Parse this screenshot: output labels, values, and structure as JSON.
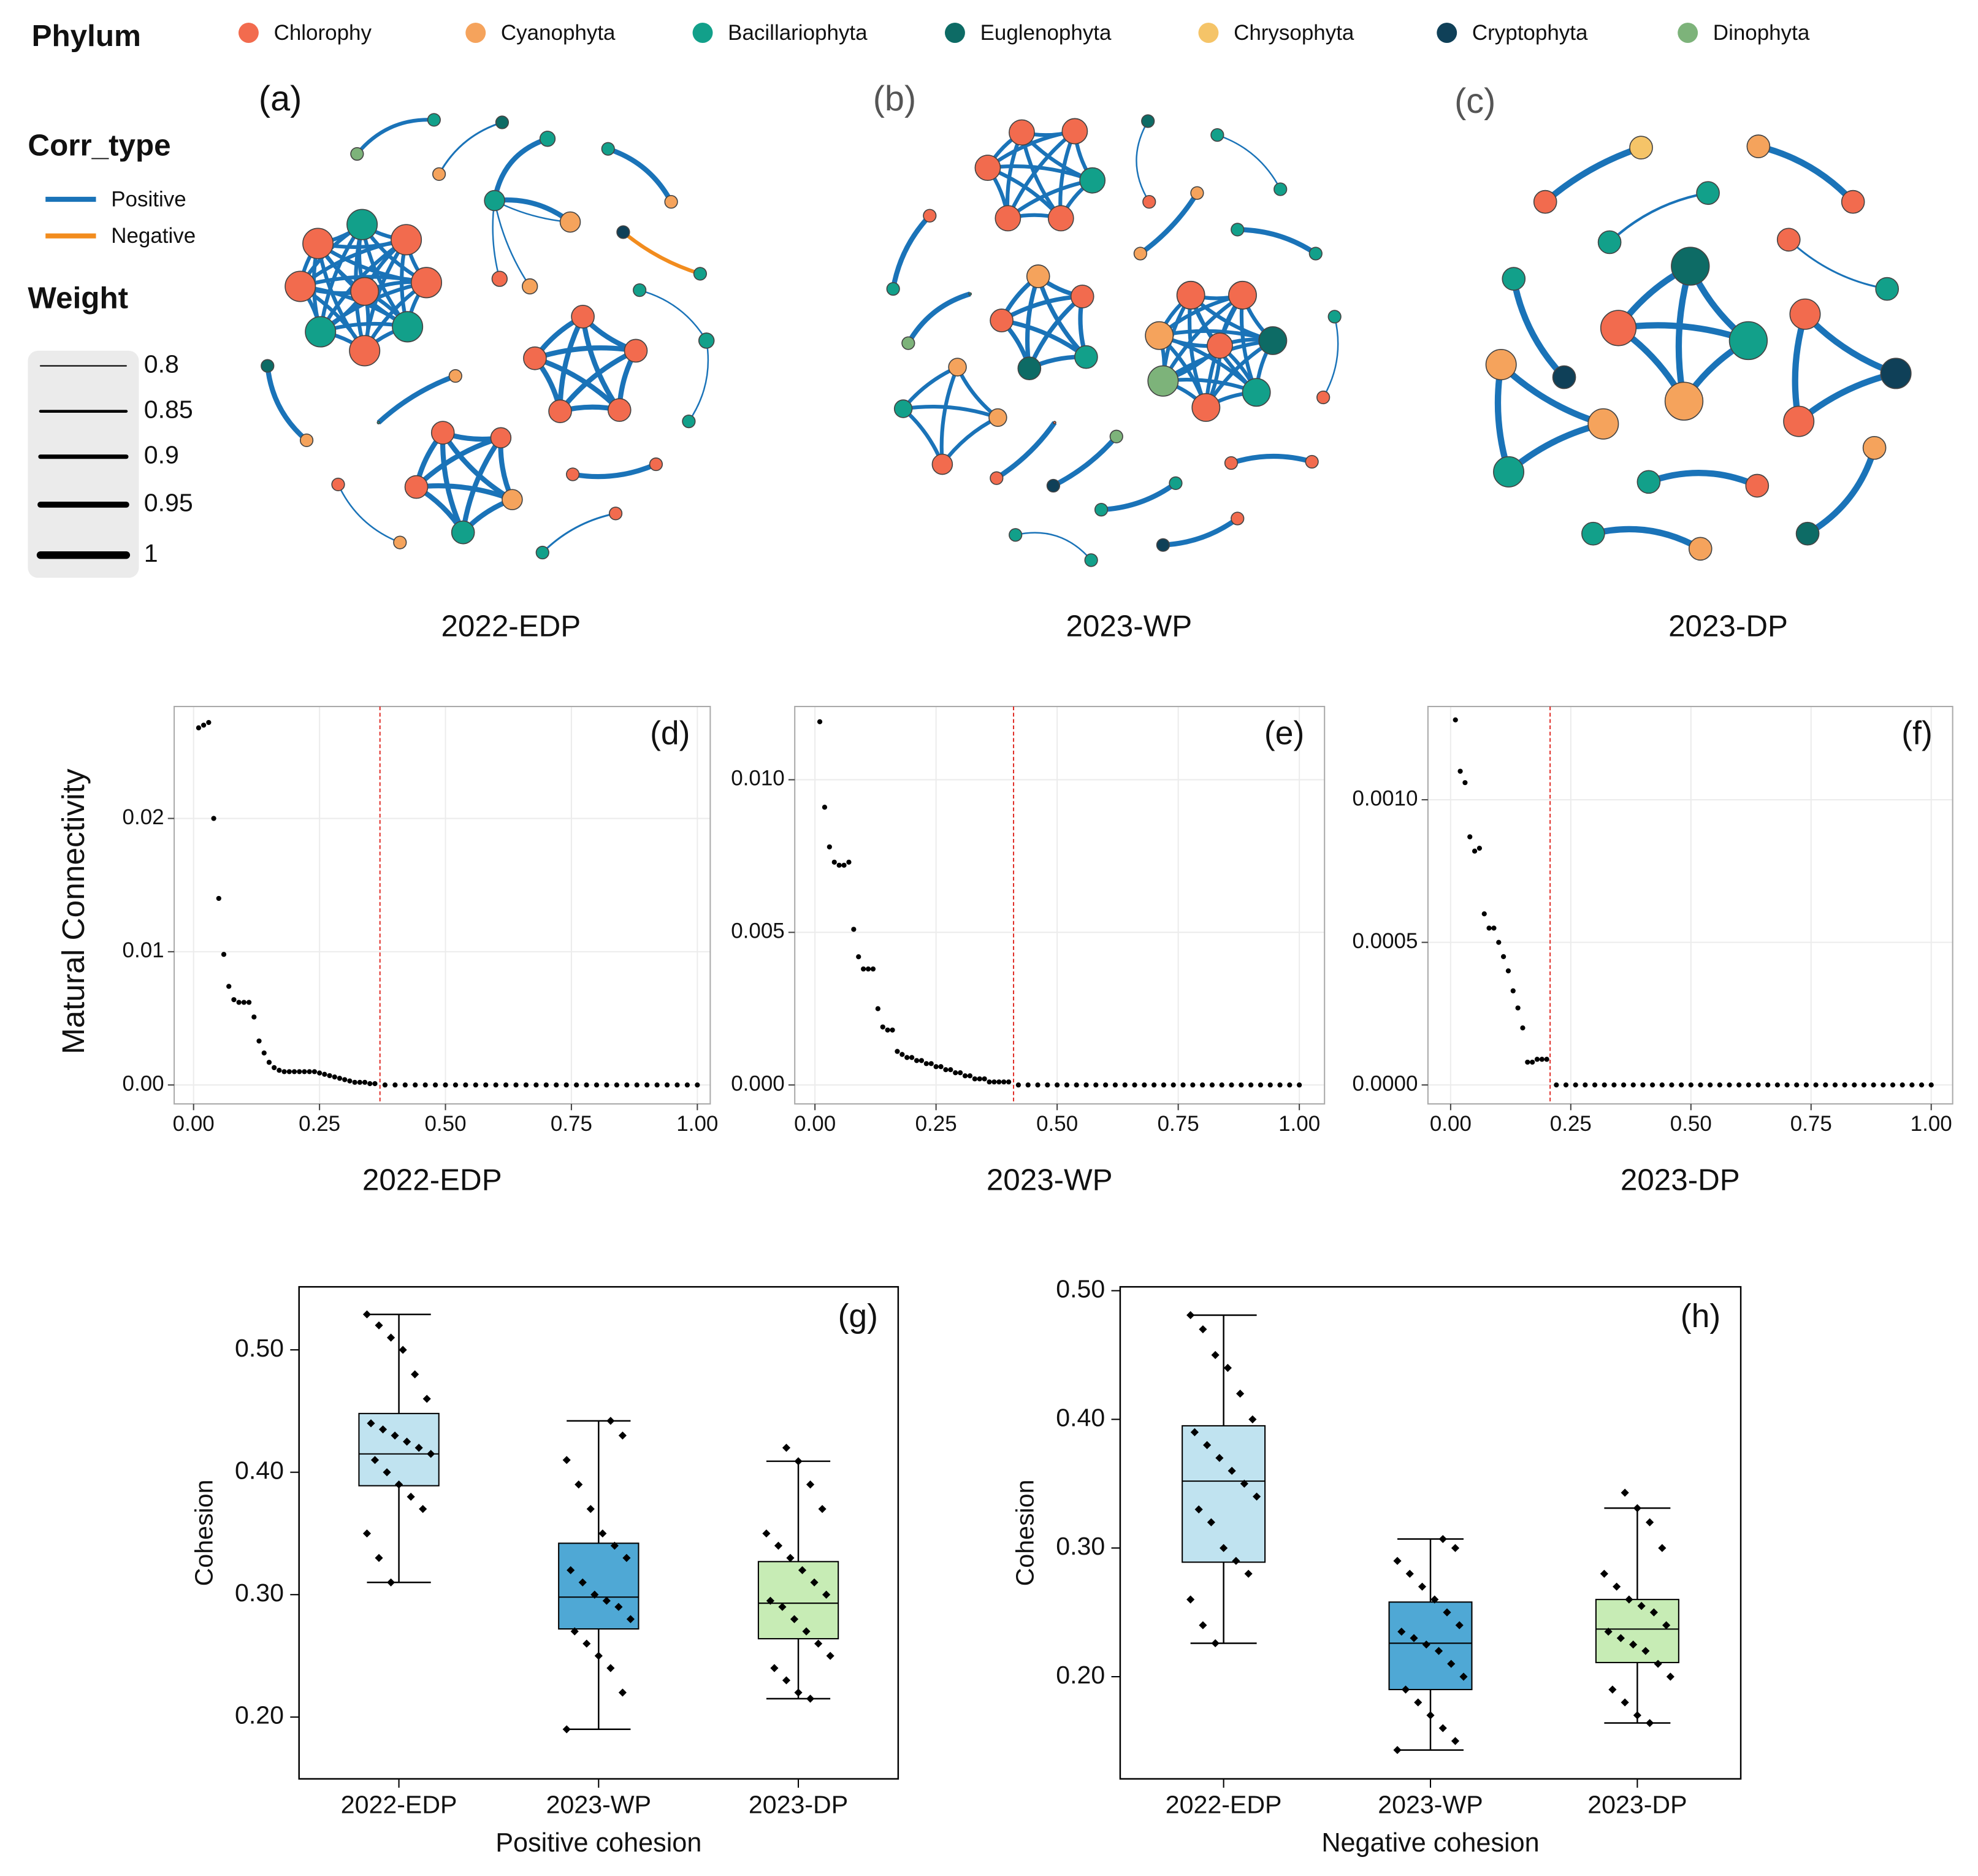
{
  "legend": {
    "phylum": {
      "title": "Phylum",
      "names": [
        "Chlorophy",
        "Cyanophyta",
        "Bacillariophyta",
        "Euglenophyta",
        "Chrysophyta",
        "Cryptophyta",
        "Dinophyta"
      ],
      "colors": [
        "#f26b4e",
        "#f5a35c",
        "#12a08a",
        "#0d6b65",
        "#f5c468",
        "#0f4058",
        "#7db37a"
      ]
    },
    "corr_type": {
      "title": "Corr_type",
      "names": [
        "Positive",
        "Negative"
      ],
      "colors": [
        "#1a73b8",
        "#f28c1e"
      ]
    },
    "weight": {
      "title": "Weight",
      "values": [
        0.8,
        0.85,
        0.9,
        0.95,
        1
      ]
    }
  },
  "networks": [
    {
      "tag": "(a)",
      "label": "2022-EDP"
    },
    {
      "tag": "(b)",
      "label": "2023-WP"
    },
    {
      "tag": "(c)",
      "label": "2023-DP"
    }
  ],
  "chart_data": [
    {
      "type": "scatter",
      "tag": "(d)",
      "xlabel": "2022-EDP",
      "ylabel": "Matural Connectivity",
      "color": "#000000",
      "grid": true,
      "vline": 0.37,
      "vline_color": "#e0302a",
      "xlim": [
        -0.0385,
        1.0256
      ],
      "ylim": [
        -0.00142,
        0.0284
      ],
      "xticks": [
        {
          "value": 0,
          "label": "0.00"
        },
        {
          "value": 0.25,
          "label": "0.25"
        },
        {
          "value": 0.5,
          "label": "0.50"
        },
        {
          "value": 0.75,
          "label": "0.75"
        },
        {
          "value": 1,
          "label": "1.00"
        }
      ],
      "yticks": [
        {
          "value": 0,
          "label": "0.00"
        },
        {
          "value": 0.01,
          "label": "0.01"
        },
        {
          "value": 0.02,
          "label": "0.02"
        }
      ],
      "x": [
        0.01,
        0.02,
        0.03,
        0.04,
        0.05,
        0.06,
        0.07,
        0.08,
        0.09,
        0.1,
        0.11,
        0.12,
        0.13,
        0.14,
        0.15,
        0.16,
        0.17,
        0.18,
        0.19,
        0.2,
        0.21,
        0.22,
        0.23,
        0.24,
        0.25,
        0.26,
        0.27,
        0.28,
        0.29,
        0.3,
        0.31,
        0.32,
        0.33,
        0.34,
        0.35,
        0.36,
        0.38,
        0.4,
        0.42,
        0.44,
        0.46,
        0.48,
        0.5,
        0.52,
        0.54,
        0.56,
        0.58,
        0.6,
        0.62,
        0.64,
        0.66,
        0.68,
        0.7,
        0.72,
        0.74,
        0.76,
        0.78,
        0.8,
        0.82,
        0.84,
        0.86,
        0.88,
        0.9,
        0.92,
        0.94,
        0.96,
        0.98,
        1
      ],
      "y": [
        0.0268,
        0.027,
        0.0272,
        0.02,
        0.014,
        0.0098,
        0.0074,
        0.0064,
        0.0062,
        0.0062,
        0.0062,
        0.0051,
        0.0033,
        0.0024,
        0.0017,
        0.0013,
        0.0011,
        0.001,
        0.001,
        0.001,
        0.001,
        0.001,
        0.001,
        0.001,
        0.0009,
        0.0008,
        0.0007,
        0.0006,
        0.0005,
        0.0004,
        0.0003,
        0.0002,
        0.0002,
        0.0002,
        0.0001,
        0.0001,
        0,
        0,
        0,
        0,
        0,
        0,
        0,
        0,
        0,
        0,
        0,
        0,
        0,
        0,
        0,
        0,
        0,
        0,
        0,
        0,
        0,
        0,
        0,
        0,
        0,
        0,
        0,
        0,
        0,
        0,
        0,
        0
      ]
    },
    {
      "type": "scatter",
      "tag": "(e)",
      "xlabel": "2023-WP",
      "color": "#000000",
      "grid": true,
      "vline": 0.41,
      "vline_color": "#e0302a",
      "xlim": [
        -0.0417,
        1.052
      ],
      "ylim": [
        -0.00062,
        0.0124
      ],
      "xticks": [
        {
          "value": 0,
          "label": "0.00"
        },
        {
          "value": 0.25,
          "label": "0.25"
        },
        {
          "value": 0.5,
          "label": "0.50"
        },
        {
          "value": 0.75,
          "label": "0.75"
        },
        {
          "value": 1,
          "label": "1.00"
        }
      ],
      "yticks": [
        {
          "value": 0,
          "label": "0.000"
        },
        {
          "value": 0.005,
          "label": "0.005"
        },
        {
          "value": 0.01,
          "label": "0.010"
        }
      ],
      "x": [
        0.01,
        0.02,
        0.03,
        0.04,
        0.05,
        0.06,
        0.07,
        0.08,
        0.09,
        0.1,
        0.11,
        0.12,
        0.13,
        0.14,
        0.15,
        0.16,
        0.17,
        0.18,
        0.19,
        0.2,
        0.21,
        0.22,
        0.23,
        0.24,
        0.25,
        0.26,
        0.27,
        0.28,
        0.29,
        0.3,
        0.31,
        0.32,
        0.33,
        0.34,
        0.35,
        0.36,
        0.37,
        0.38,
        0.39,
        0.4,
        0.42,
        0.44,
        0.46,
        0.48,
        0.5,
        0.52,
        0.54,
        0.56,
        0.58,
        0.6,
        0.62,
        0.64,
        0.66,
        0.68,
        0.7,
        0.72,
        0.74,
        0.76,
        0.78,
        0.8,
        0.82,
        0.84,
        0.86,
        0.88,
        0.9,
        0.92,
        0.94,
        0.96,
        0.98,
        1
      ],
      "y": [
        0.0119,
        0.0091,
        0.0078,
        0.0073,
        0.0072,
        0.0072,
        0.0073,
        0.0051,
        0.0042,
        0.0038,
        0.0038,
        0.0038,
        0.0025,
        0.0019,
        0.0018,
        0.0018,
        0.0011,
        0.001,
        0.0009,
        0.0009,
        0.0008,
        0.0008,
        0.0007,
        0.0007,
        0.0006,
        0.0006,
        0.0005,
        0.0005,
        0.0004,
        0.0004,
        0.0003,
        0.0003,
        0.0002,
        0.0002,
        0.0002,
        0.0001,
        0.0001,
        0.0001,
        0.0001,
        0.0001,
        0,
        0,
        0,
        0,
        0,
        0,
        0,
        0,
        0,
        0,
        0,
        0,
        0,
        0,
        0,
        0,
        0,
        0,
        0,
        0,
        0,
        0,
        0,
        0,
        0,
        0,
        0,
        0,
        0,
        0
      ]
    },
    {
      "type": "scatter",
      "tag": "(f)",
      "xlabel": "2023-DP",
      "color": "#000000",
      "grid": true,
      "vline": 0.207,
      "vline_color": "#e0302a",
      "xlim": [
        -0.0472,
        1.0446
      ],
      "ylim": [
        -6.64e-05,
        0.001327
      ],
      "xticks": [
        {
          "value": 0,
          "label": "0.00"
        },
        {
          "value": 0.25,
          "label": "0.25"
        },
        {
          "value": 0.5,
          "label": "0.50"
        },
        {
          "value": 0.75,
          "label": "0.75"
        },
        {
          "value": 1,
          "label": "1.00"
        }
      ],
      "yticks": [
        {
          "value": 0,
          "label": "0.0000"
        },
        {
          "value": 0.0005,
          "label": "0.0005"
        },
        {
          "value": 0.001,
          "label": "0.0010"
        }
      ],
      "x": [
        0.01,
        0.02,
        0.03,
        0.04,
        0.05,
        0.06,
        0.07,
        0.08,
        0.09,
        0.1,
        0.11,
        0.12,
        0.13,
        0.14,
        0.15,
        0.16,
        0.17,
        0.18,
        0.19,
        0.2,
        0.22,
        0.24,
        0.26,
        0.28,
        0.3,
        0.32,
        0.34,
        0.36,
        0.38,
        0.4,
        0.42,
        0.44,
        0.46,
        0.48,
        0.5,
        0.52,
        0.54,
        0.56,
        0.58,
        0.6,
        0.62,
        0.64,
        0.66,
        0.68,
        0.7,
        0.72,
        0.74,
        0.76,
        0.78,
        0.8,
        0.82,
        0.84,
        0.86,
        0.88,
        0.9,
        0.92,
        0.94,
        0.96,
        0.98,
        1
      ],
      "y": [
        0.00128,
        0.0011,
        0.00106,
        0.00087,
        0.00082,
        0.00083,
        0.0006,
        0.00055,
        0.00055,
        0.0005,
        0.00045,
        0.0004,
        0.00033,
        0.00027,
        0.0002,
        8e-05,
        8e-05,
        9e-05,
        9e-05,
        9e-05,
        0,
        0,
        0,
        0,
        0,
        0,
        0,
        0,
        0,
        0,
        0,
        0,
        0,
        0,
        0,
        0,
        0,
        0,
        0,
        0,
        0,
        0,
        0,
        0,
        0,
        0,
        0,
        0,
        0,
        0,
        0,
        0,
        0,
        0,
        0,
        0,
        0,
        0,
        0,
        0
      ]
    },
    {
      "type": "box",
      "tag": "(g)",
      "xlabel": "Positive cohesion",
      "ylabel": "Cohesion",
      "ylim": [
        0.1495,
        0.5515
      ],
      "yticks": [
        {
          "value": 0.2,
          "label": "0.20"
        },
        {
          "value": 0.3,
          "label": "0.30"
        },
        {
          "value": 0.4,
          "label": "0.40"
        },
        {
          "value": 0.5,
          "label": "0.50"
        }
      ],
      "categories": [
        "2022-EDP",
        "2023-WP",
        "2023-DP"
      ],
      "boxes": [
        {
          "min": 0.31,
          "q1": 0.389,
          "median": 0.415,
          "q3": 0.448,
          "max": 0.529,
          "color": "#c0e3f0",
          "points": [
            0.529,
            0.52,
            0.51,
            0.5,
            0.48,
            0.46,
            0.44,
            0.435,
            0.43,
            0.425,
            0.42,
            0.415,
            0.41,
            0.4,
            0.39,
            0.38,
            0.37,
            0.35,
            0.33,
            0.31
          ]
        },
        {
          "min": 0.19,
          "q1": 0.272,
          "median": 0.298,
          "q3": 0.342,
          "max": 0.442,
          "color": "#4fa8d5",
          "points": [
            0.442,
            0.43,
            0.41,
            0.39,
            0.37,
            0.35,
            0.34,
            0.33,
            0.32,
            0.31,
            0.3,
            0.295,
            0.29,
            0.28,
            0.27,
            0.26,
            0.25,
            0.24,
            0.22,
            0.19
          ]
        },
        {
          "min": 0.215,
          "q1": 0.264,
          "median": 0.293,
          "q3": 0.327,
          "max": 0.409,
          "color": "#c7ecb5",
          "points": [
            0.42,
            0.409,
            0.39,
            0.37,
            0.35,
            0.34,
            0.33,
            0.32,
            0.31,
            0.3,
            0.295,
            0.29,
            0.28,
            0.27,
            0.26,
            0.25,
            0.24,
            0.23,
            0.22,
            0.215
          ]
        }
      ]
    },
    {
      "type": "box",
      "tag": "(h)",
      "xlabel": "Negative cohesion",
      "ylabel": "Cohesion",
      "ylim": [
        0.1206,
        0.503
      ],
      "yticks": [
        {
          "value": 0.2,
          "label": "0.20"
        },
        {
          "value": 0.3,
          "label": "0.30"
        },
        {
          "value": 0.4,
          "label": "0.40"
        },
        {
          "value": 0.5,
          "label": "0.50"
        }
      ],
      "categories": [
        "2022-EDP",
        "2023-WP",
        "2023-DP"
      ],
      "boxes": [
        {
          "min": 0.226,
          "q1": 0.289,
          "median": 0.352,
          "q3": 0.395,
          "max": 0.481,
          "color": "#c0e3f0",
          "points": [
            0.481,
            0.47,
            0.45,
            0.44,
            0.42,
            0.4,
            0.39,
            0.38,
            0.37,
            0.36,
            0.35,
            0.34,
            0.33,
            0.32,
            0.3,
            0.29,
            0.28,
            0.26,
            0.24,
            0.226
          ]
        },
        {
          "min": 0.143,
          "q1": 0.19,
          "median": 0.226,
          "q3": 0.258,
          "max": 0.307,
          "color": "#4fa8d5",
          "points": [
            0.307,
            0.3,
            0.29,
            0.28,
            0.27,
            0.26,
            0.25,
            0.24,
            0.235,
            0.23,
            0.225,
            0.22,
            0.21,
            0.2,
            0.19,
            0.18,
            0.17,
            0.16,
            0.15,
            0.143
          ]
        },
        {
          "min": 0.164,
          "q1": 0.211,
          "median": 0.237,
          "q3": 0.26,
          "max": 0.331,
          "color": "#c7ecb5",
          "points": [
            0.343,
            0.331,
            0.32,
            0.3,
            0.28,
            0.27,
            0.26,
            0.255,
            0.25,
            0.24,
            0.235,
            0.23,
            0.225,
            0.22,
            0.21,
            0.2,
            0.19,
            0.18,
            0.17,
            0.164
          ]
        }
      ]
    }
  ]
}
